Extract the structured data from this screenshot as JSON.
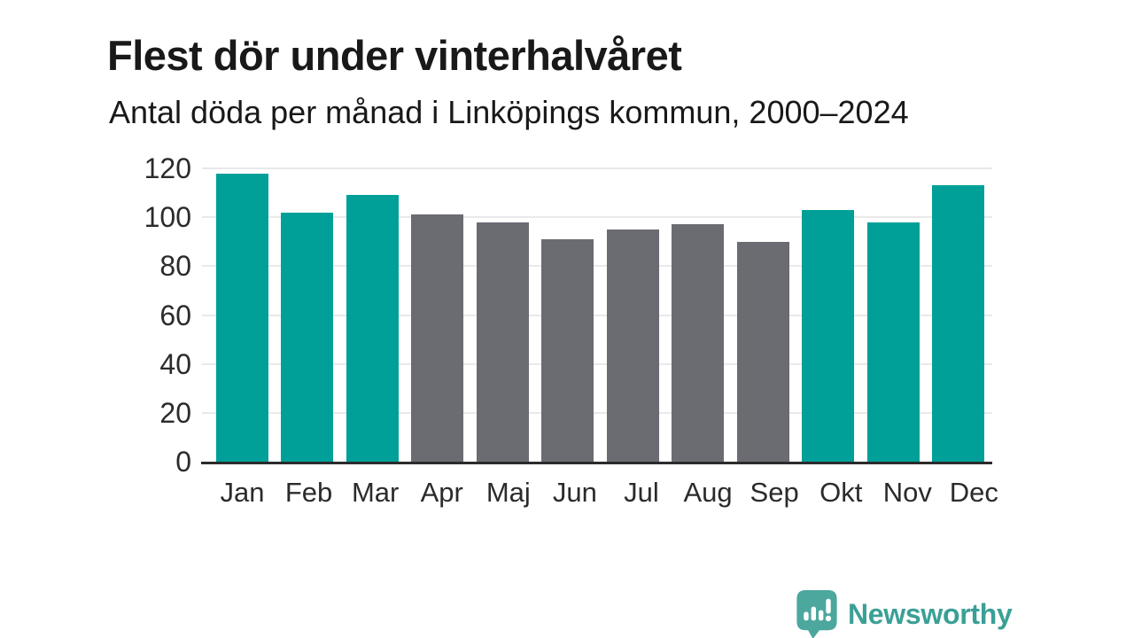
{
  "chart_data": {
    "type": "bar",
    "title": "Flest dör under vinterhalvåret",
    "subtitle": "Antal döda per månad i Linköpings kommun, 2000–2024",
    "categories": [
      "Jan",
      "Feb",
      "Mar",
      "Apr",
      "Maj",
      "Jun",
      "Jul",
      "Aug",
      "Sep",
      "Okt",
      "Nov",
      "Dec"
    ],
    "values": [
      118,
      102,
      109,
      101,
      98,
      91,
      95,
      97,
      90,
      103,
      98,
      113
    ],
    "highlighted": [
      true,
      true,
      true,
      false,
      false,
      false,
      false,
      false,
      false,
      true,
      true,
      true
    ],
    "xlabel": "",
    "ylabel": "",
    "ylim": [
      0,
      120
    ],
    "yticks": [
      0,
      20,
      40,
      60,
      80,
      100,
      120
    ],
    "grid": "horizontal",
    "legend": "none",
    "colors": {
      "highlight": "#00a099",
      "muted": "#6b6b72",
      "gridline": "#e9e9e9",
      "axis": "#2b2b2b",
      "text": "#191919",
      "tick_text": "#2b2b2b"
    }
  },
  "branding": {
    "name": "Newsworthy",
    "icon": "newsworthy-bubble-chart-icon",
    "color": "#3aa096",
    "icon_color": "#4ca79e"
  }
}
